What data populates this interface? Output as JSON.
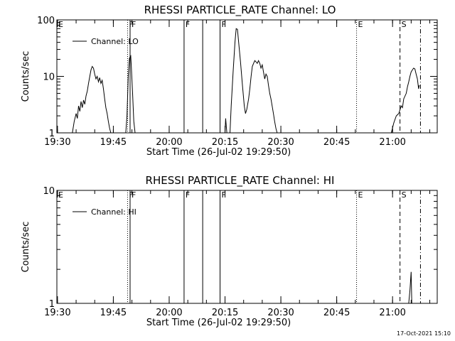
{
  "timestamp": "17-Oct-2021 15:10",
  "chart_data": [
    {
      "type": "line",
      "title": "RHESSI PARTICLE_RATE Channel: LO",
      "xlabel": "Start Time (26-Jul-02 19:29:50)",
      "ylabel": "Counts/sec",
      "yscale": "log",
      "ylim": [
        1,
        100
      ],
      "yticks": [
        "1",
        "10",
        "100"
      ],
      "xticks": [
        "19:30",
        "19:45",
        "20:00",
        "20:15",
        "20:30",
        "20:45",
        "21:00"
      ],
      "legend": {
        "label": "Channel: LO",
        "placement": "top-left"
      },
      "grid": false,
      "markers": [
        {
          "label": "E",
          "time": "19:29:50",
          "style": "edge"
        },
        {
          "label": "F",
          "time": "19:48:50",
          "style": "dotted"
        },
        {
          "label": "F",
          "time": "19:49:30",
          "style": "solid"
        },
        {
          "label": "F",
          "time": "20:04:00",
          "style": "solid"
        },
        {
          "label": "",
          "time": "20:09:00",
          "style": "solid"
        },
        {
          "label": "F",
          "time": "20:13:40",
          "style": "solid"
        },
        {
          "label": "E",
          "time": "20:50:20",
          "style": "dotted"
        },
        {
          "label": "S",
          "time": "21:02:00",
          "style": "dashed"
        },
        {
          "label": "",
          "time": "21:07:30",
          "style": "dashdot"
        }
      ],
      "series": [
        {
          "segments": [
            [
              [
                "19:34:00",
                1
              ],
              [
                "19:34:30",
                1.6
              ],
              [
                "19:35:00",
                2.2
              ],
              [
                "19:35:20",
                1.8
              ],
              [
                "19:35:40",
                3
              ],
              [
                "19:36:00",
                2.4
              ],
              [
                "19:36:20",
                3.6
              ],
              [
                "19:36:40",
                2.8
              ],
              [
                "19:37:00",
                3.8
              ],
              [
                "19:37:20",
                3.2
              ],
              [
                "19:37:40",
                4.5
              ],
              [
                "19:38:00",
                5.5
              ],
              [
                "19:38:20",
                7.5
              ],
              [
                "19:38:40",
                10
              ],
              [
                "19:39:00",
                13
              ],
              [
                "19:39:20",
                15
              ],
              [
                "19:39:40",
                14
              ],
              [
                "19:40:00",
                11
              ],
              [
                "19:40:20",
                9
              ],
              [
                "19:40:40",
                10
              ],
              [
                "19:41:00",
                8
              ],
              [
                "19:41:20",
                9.5
              ],
              [
                "19:41:40",
                7.5
              ],
              [
                "19:42:00",
                8.5
              ],
              [
                "19:42:20",
                6
              ],
              [
                "19:42:40",
                4
              ],
              [
                "19:43:00",
                2.8
              ],
              [
                "19:43:20",
                2.2
              ],
              [
                "19:43:40",
                1.6
              ],
              [
                "19:44:00",
                1.2
              ],
              [
                "19:44:20",
                1
              ]
            ],
            [
              [
                "19:48:20",
                1
              ],
              [
                "19:48:40",
                2
              ],
              [
                "19:49:00",
                10
              ],
              [
                "19:49:20",
                21
              ],
              [
                "19:49:40",
                23
              ],
              [
                "19:49:50",
                15
              ],
              [
                "19:50:10",
                5
              ],
              [
                "19:50:30",
                1.6
              ],
              [
                "19:50:50",
                1
              ]
            ],
            [
              [
                "20:15:00",
                1
              ],
              [
                "20:15:10",
                1.8
              ],
              [
                "20:15:30",
                1
              ]
            ],
            [
              [
                "20:16:20",
                1
              ],
              [
                "20:16:40",
                3
              ],
              [
                "20:17:10",
                12
              ],
              [
                "20:17:40",
                40
              ],
              [
                "20:18:00",
                70
              ],
              [
                "20:18:20",
                68
              ],
              [
                "20:18:40",
                40
              ],
              [
                "20:19:10",
                18
              ],
              [
                "20:19:40",
                7
              ],
              [
                "20:20:10",
                3
              ],
              [
                "20:20:30",
                2.2
              ],
              [
                "20:20:50",
                2.6
              ],
              [
                "20:21:20",
                4
              ],
              [
                "20:21:40",
                6
              ],
              [
                "20:22:00",
                10
              ],
              [
                "20:22:20",
                15
              ],
              [
                "20:22:40",
                17
              ],
              [
                "20:23:00",
                19
              ],
              [
                "20:23:20",
                18
              ],
              [
                "20:23:40",
                17
              ],
              [
                "20:24:00",
                19
              ],
              [
                "20:24:20",
                17
              ],
              [
                "20:24:40",
                14
              ],
              [
                "20:25:00",
                16
              ],
              [
                "20:25:20",
                12
              ],
              [
                "20:25:40",
                9
              ],
              [
                "20:26:00",
                11
              ],
              [
                "20:26:20",
                10
              ],
              [
                "20:26:40",
                7
              ],
              [
                "20:27:00",
                5
              ],
              [
                "20:27:20",
                4
              ],
              [
                "20:27:40",
                3
              ],
              [
                "20:28:00",
                2.2
              ],
              [
                "20:28:20",
                1.6
              ],
              [
                "20:28:40",
                1.2
              ],
              [
                "20:29:00",
                1
              ]
            ],
            [
              [
                "20:59:40",
                1
              ],
              [
                "21:00:20",
                1.5
              ],
              [
                "21:01:00",
                2
              ],
              [
                "21:01:40",
                2.2
              ],
              [
                "21:02:20",
                3
              ],
              [
                "21:02:40",
                2.8
              ],
              [
                "21:03:00",
                4
              ],
              [
                "21:03:40",
                5
              ],
              [
                "21:04:00",
                6.5
              ],
              [
                "21:04:20",
                8
              ],
              [
                "21:04:40",
                10
              ],
              [
                "21:05:00",
                12
              ],
              [
                "21:05:20",
                13
              ],
              [
                "21:05:40",
                14
              ],
              [
                "21:06:00",
                13.5
              ],
              [
                "21:06:20",
                11
              ],
              [
                "21:06:40",
                9
              ],
              [
                "21:07:00",
                6
              ],
              [
                "21:07:10",
                7
              ]
            ]
          ]
        }
      ]
    },
    {
      "type": "line",
      "title": "RHESSI PARTICLE_RATE Channel: HI",
      "xlabel": "Start Time (26-Jul-02 19:29:50)",
      "ylabel": "Counts/sec",
      "yscale": "log",
      "ylim": [
        1,
        10
      ],
      "yticks": [
        "1",
        "10"
      ],
      "xticks": [
        "19:30",
        "19:45",
        "20:00",
        "20:15",
        "20:30",
        "20:45",
        "21:00"
      ],
      "legend": {
        "label": "Channel: HI",
        "placement": "top-left"
      },
      "grid": false,
      "markers": [
        {
          "label": "E",
          "time": "19:29:50",
          "style": "edge"
        },
        {
          "label": "F",
          "time": "19:48:50",
          "style": "dotted"
        },
        {
          "label": "F",
          "time": "19:49:30",
          "style": "solid"
        },
        {
          "label": "F",
          "time": "20:04:00",
          "style": "solid"
        },
        {
          "label": "",
          "time": "20:09:00",
          "style": "solid"
        },
        {
          "label": "F",
          "time": "20:13:40",
          "style": "solid"
        },
        {
          "label": "E",
          "time": "20:50:20",
          "style": "dotted"
        },
        {
          "label": "S",
          "time": "21:02:00",
          "style": "dashed"
        },
        {
          "label": "",
          "time": "21:07:30",
          "style": "dashdot"
        }
      ],
      "series": [
        {
          "segments": [
            [
              [
                "21:04:20",
                1
              ],
              [
                "21:04:40",
                1.3
              ],
              [
                "21:05:00",
                1.9
              ],
              [
                "21:05:10",
                1
              ]
            ]
          ]
        }
      ]
    }
  ]
}
